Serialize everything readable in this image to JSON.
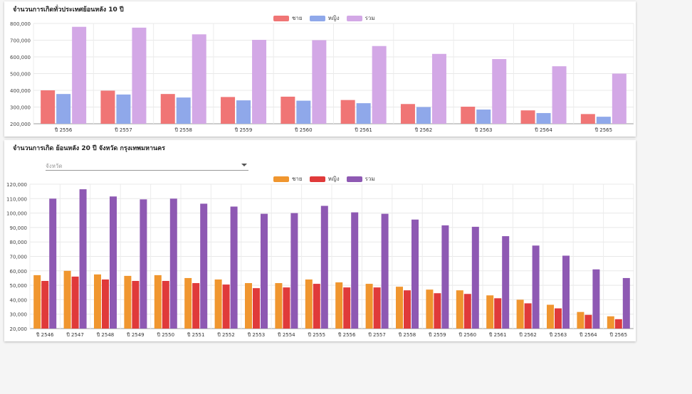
{
  "chart_data": [
    {
      "type": "bar",
      "title": "จำนวนการเกิดทั่วประเทศย้อนหลัง 10 ปี",
      "categories": [
        "ปี 2556",
        "ปี 2557",
        "ปี 2558",
        "ปี 2559",
        "ปี 2560",
        "ปี 2561",
        "ปี 2562",
        "ปี 2563",
        "ปี 2564",
        "ปี 2565"
      ],
      "series": [
        {
          "name": "ชาย",
          "color": "#f07575",
          "values": [
            400000,
            398000,
            378000,
            360000,
            362000,
            342000,
            318000,
            302000,
            280000,
            258000
          ]
        },
        {
          "name": "หญิง",
          "color": "#8fa8ea",
          "values": [
            378000,
            375000,
            357000,
            340000,
            338000,
            323000,
            300000,
            285000,
            264000,
            242000
          ]
        },
        {
          "name": "รวม",
          "color": "#d3a8e6",
          "values": [
            780000,
            775000,
            735000,
            702000,
            700000,
            665000,
            618000,
            587000,
            544000,
            500000
          ]
        }
      ],
      "yticks": [
        "800,000",
        "700,000",
        "600,000",
        "500,000",
        "400,000",
        "300,000",
        "200,000"
      ],
      "ylim": [
        200000,
        800000
      ],
      "legend": "top-center"
    },
    {
      "type": "bar",
      "title": "จำนวนการเกิด ย้อนหลัง 20 ปี จังหวัด กรุงเทพมหานคร",
      "categories": [
        "ปี 2546",
        "ปี 2547",
        "ปี 2548",
        "ปี 2549",
        "ปี 2550",
        "ปี 2551",
        "ปี 2552",
        "ปี 2553",
        "ปี 2554",
        "ปี 2555",
        "ปี 2556",
        "ปี 2557",
        "ปี 2558",
        "ปี 2559",
        "ปี 2560",
        "ปี 2561",
        "ปี 2562",
        "ปี 2563",
        "ปี 2564",
        "ปี 2565"
      ],
      "series": [
        {
          "name": "ชาย",
          "color": "#f0962f",
          "values": [
            57000,
            60000,
            57500,
            56500,
            57000,
            55000,
            54000,
            51500,
            51500,
            54000,
            52000,
            51000,
            49000,
            47000,
            46500,
            43000,
            40000,
            36500,
            31500,
            28500
          ]
        },
        {
          "name": "หญิง",
          "color": "#e03a3a",
          "values": [
            53000,
            56000,
            54000,
            53000,
            53000,
            51500,
            50500,
            48000,
            48500,
            51000,
            48500,
            48500,
            46500,
            44500,
            44000,
            41000,
            37500,
            34000,
            29500,
            26500
          ]
        },
        {
          "name": "รวม",
          "color": "#8e59b3",
          "values": [
            110000,
            116500,
            111500,
            109500,
            110000,
            106500,
            104500,
            99500,
            100000,
            105000,
            100500,
            99500,
            95500,
            91500,
            90500,
            84000,
            77500,
            70500,
            61000,
            55000
          ]
        }
      ],
      "yticks": [
        "120,000",
        "110,000",
        "100,000",
        "90,000",
        "80,000",
        "70,000",
        "60,000",
        "50,000",
        "40,000",
        "30,000",
        "20,000"
      ],
      "ylim": [
        20000,
        120000
      ],
      "legend": "top-center"
    }
  ],
  "filter": {
    "placeholder": "จังหวัด"
  }
}
